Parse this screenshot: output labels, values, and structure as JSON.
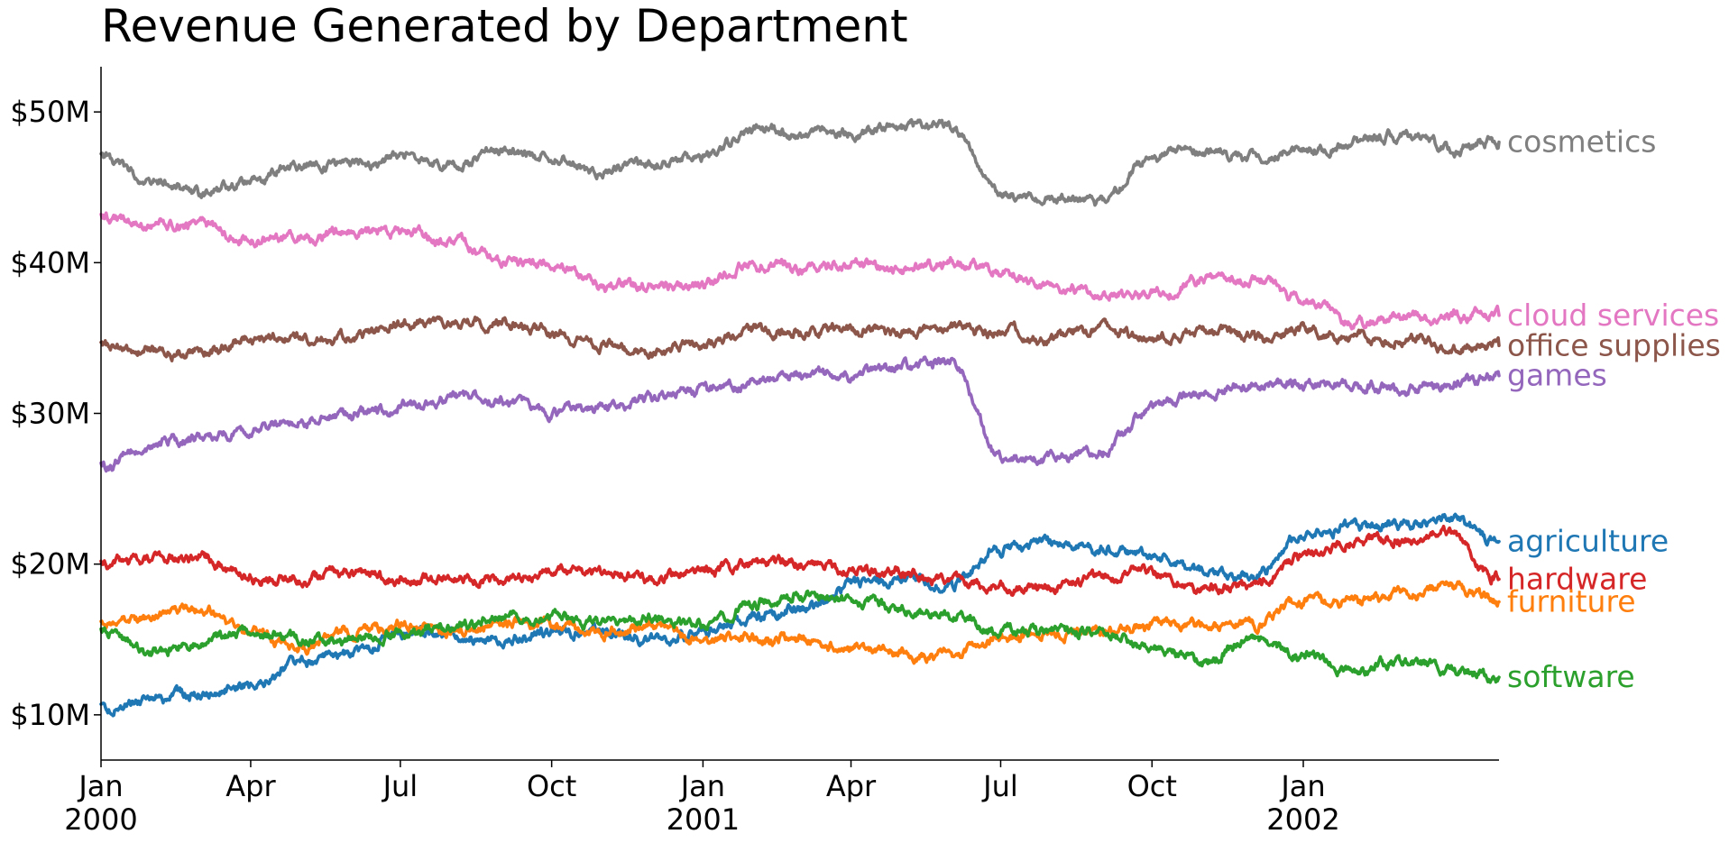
{
  "chart_data": {
    "type": "line",
    "title": "Revenue Generated by Department",
    "xlabel": "",
    "ylabel": "",
    "x_range": [
      "2000-01-01",
      "2002-04-30"
    ],
    "ylim": [
      7,
      53
    ],
    "y_ticks": [
      {
        "value": 10,
        "label": "$10M"
      },
      {
        "value": 20,
        "label": "$20M"
      },
      {
        "value": 30,
        "label": "$30M"
      },
      {
        "value": 40,
        "label": "$40M"
      },
      {
        "value": 50,
        "label": "$50M"
      }
    ],
    "x_ticks": [
      {
        "date": "2000-01-01",
        "label": "Jan",
        "year": "2000"
      },
      {
        "date": "2000-04-01",
        "label": "Apr",
        "year": ""
      },
      {
        "date": "2000-07-01",
        "label": "Jul",
        "year": ""
      },
      {
        "date": "2000-10-01",
        "label": "Oct",
        "year": ""
      },
      {
        "date": "2001-01-01",
        "label": "Jan",
        "year": "2001"
      },
      {
        "date": "2001-04-01",
        "label": "Apr",
        "year": ""
      },
      {
        "date": "2001-07-01",
        "label": "Jul",
        "year": ""
      },
      {
        "date": "2001-10-01",
        "label": "Oct",
        "year": ""
      },
      {
        "date": "2002-01-01",
        "label": "Jan",
        "year": "2002"
      }
    ],
    "grid": false,
    "legend": "direct labels at right end of lines",
    "series": [
      {
        "name": "cosmetics",
        "color": "#7f7f7f",
        "points": [
          [
            "2000-01-01",
            47.0
          ],
          [
            "2000-02-01",
            45.5
          ],
          [
            "2000-03-01",
            44.5
          ],
          [
            "2000-04-01",
            45.5
          ],
          [
            "2000-05-01",
            46.5
          ],
          [
            "2000-06-01",
            46.5
          ],
          [
            "2000-07-01",
            47.0
          ],
          [
            "2000-08-01",
            46.5
          ],
          [
            "2000-09-01",
            47.5
          ],
          [
            "2000-10-01",
            47.0
          ],
          [
            "2000-11-01",
            46.0
          ],
          [
            "2000-12-01",
            46.5
          ],
          [
            "2001-01-01",
            47.0
          ],
          [
            "2001-02-01",
            49.0
          ],
          [
            "2001-03-01",
            48.5
          ],
          [
            "2001-04-01",
            48.5
          ],
          [
            "2001-05-01",
            49.0
          ],
          [
            "2001-06-01",
            49.0
          ],
          [
            "2001-07-01",
            44.5
          ],
          [
            "2001-08-01",
            44.5
          ],
          [
            "2001-09-01",
            44.0
          ],
          [
            "2001-10-01",
            47.0
          ],
          [
            "2001-11-01",
            47.5
          ],
          [
            "2001-12-01",
            47.0
          ],
          [
            "2002-01-01",
            47.5
          ],
          [
            "2002-02-01",
            48.0
          ],
          [
            "2002-03-01",
            48.5
          ],
          [
            "2002-04-01",
            47.5
          ],
          [
            "2002-04-30",
            48.0
          ]
        ]
      },
      {
        "name": "cloud services",
        "color": "#e377c2",
        "points": [
          [
            "2000-01-01",
            43.0
          ],
          [
            "2000-02-01",
            42.5
          ],
          [
            "2000-03-01",
            42.5
          ],
          [
            "2000-04-01",
            41.5
          ],
          [
            "2000-05-01",
            41.5
          ],
          [
            "2000-06-01",
            42.0
          ],
          [
            "2000-07-01",
            42.0
          ],
          [
            "2000-08-01",
            41.5
          ],
          [
            "2000-09-01",
            40.0
          ],
          [
            "2000-10-01",
            40.0
          ],
          [
            "2000-11-01",
            38.5
          ],
          [
            "2000-12-01",
            38.5
          ],
          [
            "2001-01-01",
            38.5
          ],
          [
            "2001-02-01",
            40.0
          ],
          [
            "2001-03-01",
            39.5
          ],
          [
            "2001-04-01",
            40.0
          ],
          [
            "2001-05-01",
            39.5
          ],
          [
            "2001-06-01",
            40.0
          ],
          [
            "2001-07-01",
            39.5
          ],
          [
            "2001-08-01",
            38.5
          ],
          [
            "2001-09-01",
            38.0
          ],
          [
            "2001-10-01",
            38.0
          ],
          [
            "2001-11-01",
            39.0
          ],
          [
            "2001-12-01",
            39.0
          ],
          [
            "2002-01-01",
            37.5
          ],
          [
            "2002-02-01",
            36.0
          ],
          [
            "2002-03-01",
            36.5
          ],
          [
            "2002-04-01",
            36.5
          ],
          [
            "2002-04-30",
            36.5
          ]
        ]
      },
      {
        "name": "office supplies",
        "color": "#8c564b",
        "points": [
          [
            "2000-01-01",
            34.5
          ],
          [
            "2000-02-01",
            34.0
          ],
          [
            "2000-03-01",
            34.0
          ],
          [
            "2000-04-01",
            35.0
          ],
          [
            "2000-05-01",
            35.0
          ],
          [
            "2000-06-01",
            35.0
          ],
          [
            "2000-07-01",
            36.0
          ],
          [
            "2000-08-01",
            36.0
          ],
          [
            "2000-09-01",
            36.0
          ],
          [
            "2000-10-01",
            35.5
          ],
          [
            "2000-11-01",
            34.5
          ],
          [
            "2000-12-01",
            34.0
          ],
          [
            "2001-01-01",
            34.5
          ],
          [
            "2001-02-01",
            35.5
          ],
          [
            "2001-03-01",
            35.5
          ],
          [
            "2001-04-01",
            35.5
          ],
          [
            "2001-05-01",
            35.5
          ],
          [
            "2001-06-01",
            35.5
          ],
          [
            "2001-07-01",
            35.5
          ],
          [
            "2001-08-01",
            35.0
          ],
          [
            "2001-09-01",
            35.5
          ],
          [
            "2001-10-01",
            35.0
          ],
          [
            "2001-11-01",
            35.5
          ],
          [
            "2001-12-01",
            35.0
          ],
          [
            "2002-01-01",
            35.5
          ],
          [
            "2002-02-01",
            35.0
          ],
          [
            "2002-03-01",
            35.0
          ],
          [
            "2002-04-01",
            34.5
          ],
          [
            "2002-04-30",
            34.5
          ]
        ]
      },
      {
        "name": "games",
        "color": "#9467bd",
        "points": [
          [
            "2000-01-01",
            26.5
          ],
          [
            "2000-02-01",
            28.0
          ],
          [
            "2000-03-01",
            28.5
          ],
          [
            "2000-04-01",
            29.0
          ],
          [
            "2000-05-01",
            29.5
          ],
          [
            "2000-06-01",
            30.0
          ],
          [
            "2000-07-01",
            30.5
          ],
          [
            "2000-08-01",
            31.0
          ],
          [
            "2000-09-01",
            31.0
          ],
          [
            "2000-10-01",
            30.0
          ],
          [
            "2000-11-01",
            30.5
          ],
          [
            "2000-12-01",
            31.0
          ],
          [
            "2001-01-01",
            31.5
          ],
          [
            "2001-02-01",
            32.0
          ],
          [
            "2001-03-01",
            32.5
          ],
          [
            "2001-04-01",
            32.5
          ],
          [
            "2001-05-01",
            33.0
          ],
          [
            "2001-06-01",
            33.5
          ],
          [
            "2001-07-01",
            27.0
          ],
          [
            "2001-08-01",
            27.0
          ],
          [
            "2001-09-01",
            27.5
          ],
          [
            "2001-10-01",
            30.5
          ],
          [
            "2001-11-01",
            31.5
          ],
          [
            "2001-12-01",
            32.0
          ],
          [
            "2002-01-01",
            32.0
          ],
          [
            "2002-02-01",
            32.0
          ],
          [
            "2002-03-01",
            31.5
          ],
          [
            "2002-04-01",
            32.0
          ],
          [
            "2002-04-30",
            32.5
          ]
        ]
      },
      {
        "name": "agriculture",
        "color": "#1f77b4",
        "points": [
          [
            "2000-01-01",
            10.5
          ],
          [
            "2000-02-01",
            11.0
          ],
          [
            "2000-03-01",
            11.5
          ],
          [
            "2000-04-01",
            12.0
          ],
          [
            "2000-05-01",
            13.5
          ],
          [
            "2000-06-01",
            14.0
          ],
          [
            "2000-07-01",
            15.5
          ],
          [
            "2000-08-01",
            15.5
          ],
          [
            "2000-09-01",
            15.0
          ],
          [
            "2000-10-01",
            15.5
          ],
          [
            "2000-11-01",
            15.5
          ],
          [
            "2000-12-01",
            15.0
          ],
          [
            "2001-01-01",
            15.5
          ],
          [
            "2001-02-01",
            16.5
          ],
          [
            "2001-03-01",
            17.0
          ],
          [
            "2001-04-01",
            18.5
          ],
          [
            "2001-05-01",
            19.0
          ],
          [
            "2001-06-01",
            18.5
          ],
          [
            "2001-07-01",
            21.0
          ],
          [
            "2001-08-01",
            21.5
          ],
          [
            "2001-09-01",
            21.0
          ],
          [
            "2001-10-01",
            20.5
          ],
          [
            "2001-11-01",
            19.5
          ],
          [
            "2001-12-01",
            19.0
          ],
          [
            "2002-01-01",
            22.0
          ],
          [
            "2002-02-01",
            22.5
          ],
          [
            "2002-03-01",
            22.5
          ],
          [
            "2002-04-01",
            23.0
          ],
          [
            "2002-04-30",
            21.5
          ]
        ]
      },
      {
        "name": "hardware",
        "color": "#d62728",
        "points": [
          [
            "2000-01-01",
            20.0
          ],
          [
            "2000-02-01",
            20.5
          ],
          [
            "2000-03-01",
            20.5
          ],
          [
            "2000-04-01",
            19.0
          ],
          [
            "2000-05-01",
            19.0
          ],
          [
            "2000-06-01",
            19.5
          ],
          [
            "2000-07-01",
            19.0
          ],
          [
            "2000-08-01",
            19.0
          ],
          [
            "2000-09-01",
            19.0
          ],
          [
            "2000-10-01",
            19.5
          ],
          [
            "2000-11-01",
            19.5
          ],
          [
            "2000-12-01",
            19.0
          ],
          [
            "2001-01-01",
            19.5
          ],
          [
            "2001-02-01",
            20.0
          ],
          [
            "2001-03-01",
            20.0
          ],
          [
            "2001-04-01",
            19.5
          ],
          [
            "2001-05-01",
            19.5
          ],
          [
            "2001-06-01",
            19.0
          ],
          [
            "2001-07-01",
            18.5
          ],
          [
            "2001-08-01",
            18.5
          ],
          [
            "2001-09-01",
            19.0
          ],
          [
            "2001-10-01",
            19.5
          ],
          [
            "2001-11-01",
            18.5
          ],
          [
            "2001-12-01",
            18.5
          ],
          [
            "2002-01-01",
            20.5
          ],
          [
            "2002-02-01",
            21.5
          ],
          [
            "2002-03-01",
            21.5
          ],
          [
            "2002-04-01",
            22.0
          ],
          [
            "2002-04-30",
            19.0
          ]
        ]
      },
      {
        "name": "furniture",
        "color": "#ff7f0e",
        "points": [
          [
            "2000-01-01",
            16.0
          ],
          [
            "2000-02-01",
            16.5
          ],
          [
            "2000-03-01",
            17.0
          ],
          [
            "2000-04-01",
            15.5
          ],
          [
            "2000-05-01",
            14.5
          ],
          [
            "2000-06-01",
            15.5
          ],
          [
            "2000-07-01",
            16.0
          ],
          [
            "2000-08-01",
            15.5
          ],
          [
            "2000-09-01",
            16.0
          ],
          [
            "2000-10-01",
            16.0
          ],
          [
            "2000-11-01",
            15.5
          ],
          [
            "2000-12-01",
            16.0
          ],
          [
            "2001-01-01",
            15.0
          ],
          [
            "2001-02-01",
            15.0
          ],
          [
            "2001-03-01",
            15.0
          ],
          [
            "2001-04-01",
            14.5
          ],
          [
            "2001-05-01",
            14.0
          ],
          [
            "2001-06-01",
            14.0
          ],
          [
            "2001-07-01",
            15.0
          ],
          [
            "2001-08-01",
            15.5
          ],
          [
            "2001-09-01",
            15.5
          ],
          [
            "2001-10-01",
            16.0
          ],
          [
            "2001-11-01",
            16.0
          ],
          [
            "2001-12-01",
            16.0
          ],
          [
            "2002-01-01",
            17.5
          ],
          [
            "2002-02-01",
            17.5
          ],
          [
            "2002-03-01",
            18.0
          ],
          [
            "2002-04-01",
            18.5
          ],
          [
            "2002-04-30",
            17.5
          ]
        ]
      },
      {
        "name": "software",
        "color": "#2ca02c",
        "points": [
          [
            "2000-01-01",
            15.5
          ],
          [
            "2000-02-01",
            14.0
          ],
          [
            "2000-03-01",
            15.0
          ],
          [
            "2000-04-01",
            15.5
          ],
          [
            "2000-05-01",
            15.0
          ],
          [
            "2000-06-01",
            15.0
          ],
          [
            "2000-07-01",
            15.5
          ],
          [
            "2000-08-01",
            16.0
          ],
          [
            "2000-09-01",
            16.5
          ],
          [
            "2000-10-01",
            16.5
          ],
          [
            "2000-11-01",
            16.0
          ],
          [
            "2000-12-01",
            16.5
          ],
          [
            "2001-01-01",
            16.0
          ],
          [
            "2001-02-01",
            17.5
          ],
          [
            "2001-03-01",
            18.0
          ],
          [
            "2001-04-01",
            17.5
          ],
          [
            "2001-05-01",
            17.0
          ],
          [
            "2001-06-01",
            16.5
          ],
          [
            "2001-07-01",
            15.5
          ],
          [
            "2001-08-01",
            15.5
          ],
          [
            "2001-09-01",
            15.5
          ],
          [
            "2001-10-01",
            14.5
          ],
          [
            "2001-11-01",
            13.5
          ],
          [
            "2001-12-01",
            15.0
          ],
          [
            "2002-01-01",
            14.0
          ],
          [
            "2002-02-01",
            13.0
          ],
          [
            "2002-03-01",
            13.5
          ],
          [
            "2002-04-01",
            13.0
          ],
          [
            "2002-04-30",
            12.5
          ]
        ]
      }
    ]
  }
}
